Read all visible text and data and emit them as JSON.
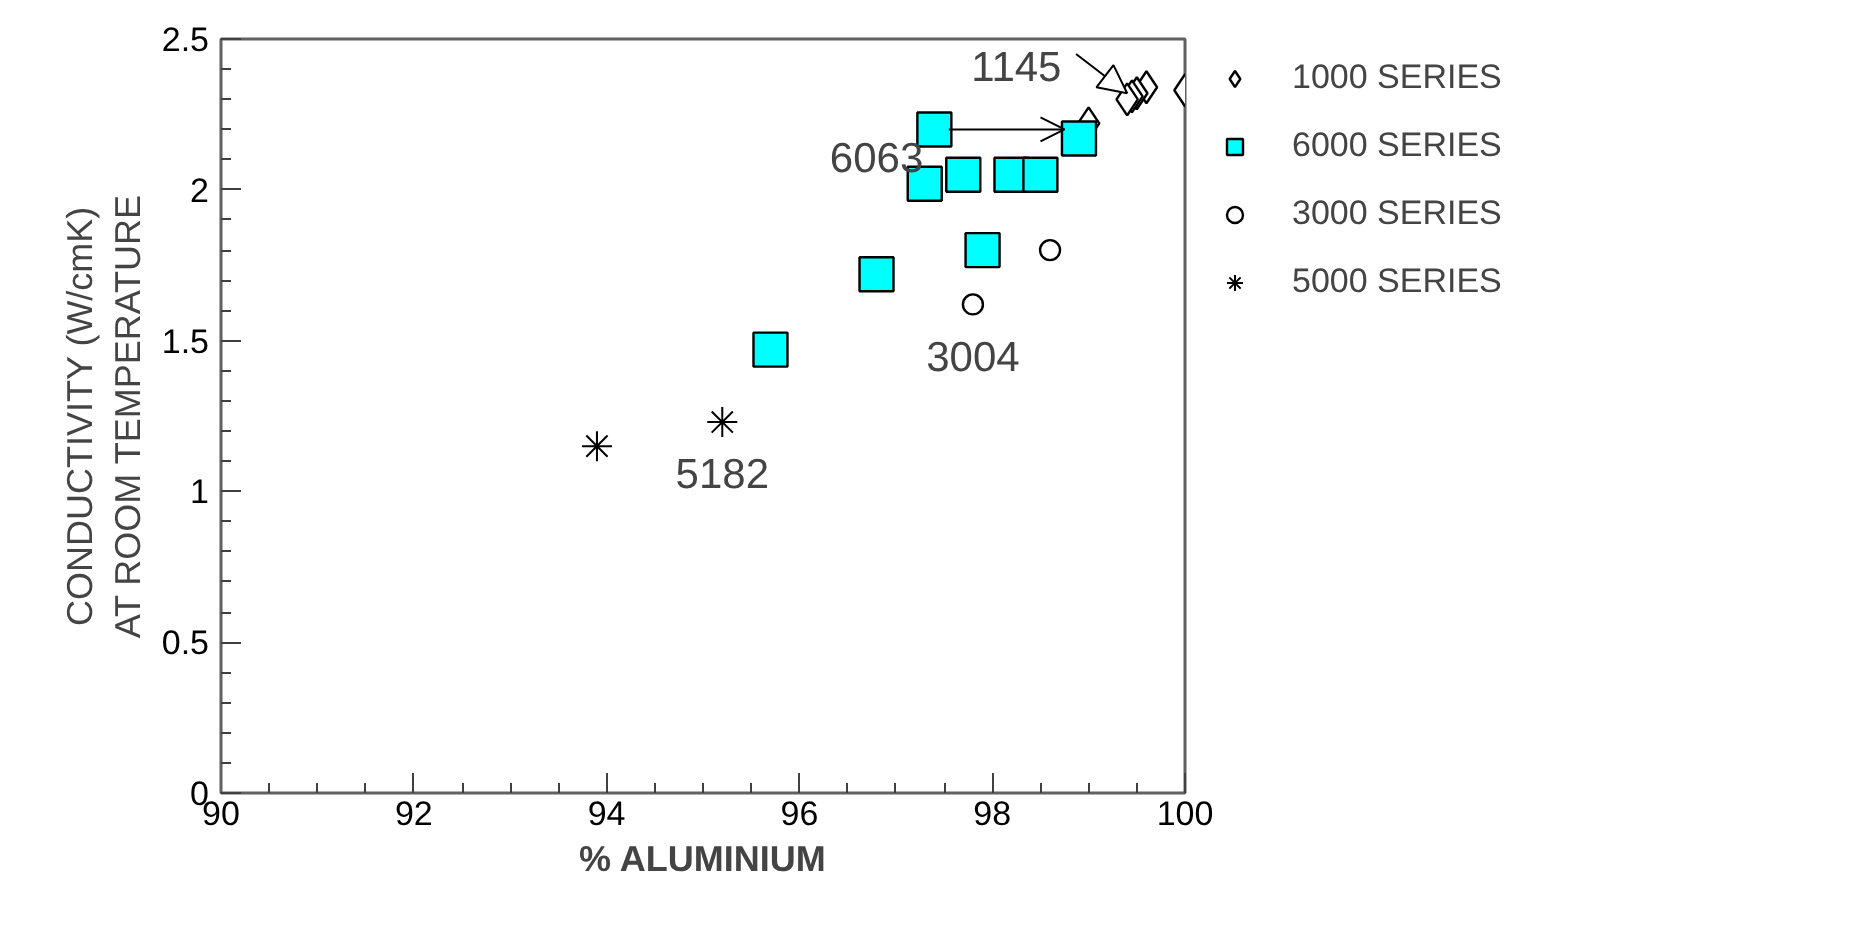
{
  "chart_data": {
    "type": "scatter",
    "xlabel": "% ALUMINIUM",
    "ylabel": "CONDUCTIVITY (W/cmK)\nAT ROOM TEMPERATURE",
    "xlim": [
      90,
      100
    ],
    "xticks": [
      90,
      92,
      94,
      96,
      98,
      100
    ],
    "ylim": [
      0,
      2.5
    ],
    "yticks": [
      0,
      0.5,
      1,
      1.5,
      2,
      2.5
    ],
    "grid": false,
    "legend": "right",
    "series": [
      {
        "name": "1000 SERIES",
        "marker": "diamond",
        "color": "#ffffff",
        "x": [
          100,
          99.6,
          99.5,
          99.45,
          99.4,
          99.0
        ],
        "values": [
          2.33,
          2.34,
          2.32,
          2.31,
          2.3,
          2.22
        ]
      },
      {
        "name": "6000 SERIES",
        "marker": "square",
        "color": "#00ffff",
        "x": [
          97.4,
          98.9,
          97.3,
          97.7,
          98.2,
          98.5,
          97.9,
          96.8,
          95.7
        ],
        "values": [
          2.2,
          2.17,
          2.02,
          2.05,
          2.05,
          2.05,
          1.8,
          1.72,
          1.47
        ]
      },
      {
        "name": "3000 SERIES",
        "marker": "circle",
        "color": "#ffffff",
        "x": [
          98.6,
          97.8
        ],
        "values": [
          1.8,
          1.62
        ]
      },
      {
        "name": "5000 SERIES",
        "marker": "cross",
        "color": "#000000",
        "x": [
          93.9,
          95.2
        ],
        "values": [
          1.15,
          1.23
        ]
      }
    ],
    "annotations": [
      {
        "text": "1145",
        "x": 99.45,
        "y": 2.31
      },
      {
        "text": "6063",
        "x": 97.4,
        "y": 2.2
      },
      {
        "text": "3004",
        "x": 97.8,
        "y": 1.62
      },
      {
        "text": "5182",
        "x": 95.2,
        "y": 1.23
      }
    ]
  }
}
